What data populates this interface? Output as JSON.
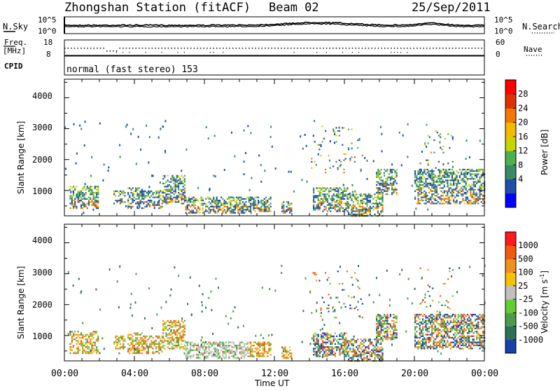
{
  "header": {
    "title": "Zhongshan Station (fitACF)",
    "beam": "Beam 02",
    "date": "25/Sep/2011"
  },
  "noise_panel": {
    "left_label": "N.Sky",
    "left_ticks": [
      "10^5",
      "10^0"
    ],
    "right_ticks": [
      "10^5",
      "10^0"
    ],
    "right_label": "N.Search"
  },
  "freq_panel": {
    "left_label_1": "Freq.",
    "left_label_2": "[MHz]",
    "left_ticks": [
      "18",
      "8"
    ],
    "right_ticks": [
      "60",
      "0"
    ],
    "right_label": "Nave"
  },
  "cpid_panel": {
    "label": "CPID",
    "text": "normal (fast stereo) 153"
  },
  "x_axis": {
    "tick_labels": [
      "00:00",
      "04:00",
      "08:00",
      "12:00",
      "16:00",
      "20:00",
      "00:00"
    ],
    "label": "Time UT"
  },
  "power_panel": {
    "ylabel": "Slant Range [km]",
    "y_ticks": [
      "4000",
      "3000",
      "2000",
      "1000"
    ],
    "colorbar_label": "Power [dB]",
    "colorbar_ticks": [
      "28",
      "24",
      "20",
      "16",
      "12",
      "8",
      "4"
    ],
    "colors": [
      "#0000ff",
      "#1f4fa8",
      "#3a8a6a",
      "#4fb04f",
      "#c8d400",
      "#f5b800",
      "#f07a00",
      "#e03000",
      "#ff0000"
    ]
  },
  "velocity_panel": {
    "ylabel": "Slant Range [km]",
    "y_ticks": [
      "4000",
      "3000",
      "2000",
      "1000"
    ],
    "colorbar_label": "Velocity [m s",
    "colorbar_label_sup": "-1",
    "colorbar_label_end": "]",
    "colorbar_ticks": [
      "1000",
      "500",
      "100",
      "25",
      "-25",
      "-100",
      "-500",
      "-1000"
    ],
    "colors": [
      "#1a3fa8",
      "#2f6f5a",
      "#4f9a4f",
      "#66cc33",
      "#c0c0c0",
      "#f5c000",
      "#f09020",
      "#f05a10",
      "#ff1a1a"
    ]
  },
  "chart_data": {
    "type": "heatmap",
    "x_range_hours": [
      0,
      24
    ],
    "y_range_km": [
      180,
      4600
    ],
    "grid": false,
    "scatter_regions": [
      {
        "t0": 0.3,
        "t1": 1.9,
        "r0": 420,
        "r1": 1150
      },
      {
        "t0": 2.8,
        "t1": 3.5,
        "r0": 600,
        "r1": 1000
      },
      {
        "t0": 3.6,
        "t1": 4.4,
        "r0": 450,
        "r1": 1100
      },
      {
        "t0": 4.4,
        "t1": 5.6,
        "r0": 450,
        "r1": 1000
      },
      {
        "t0": 5.6,
        "t1": 6.9,
        "r0": 600,
        "r1": 1500
      },
      {
        "t0": 6.9,
        "t1": 10.6,
        "r0": 280,
        "r1": 800
      },
      {
        "t0": 10.6,
        "t1": 11.8,
        "r0": 350,
        "r1": 800
      },
      {
        "t0": 12.4,
        "t1": 13.0,
        "r0": 300,
        "r1": 650
      },
      {
        "t0": 14.2,
        "t1": 16.2,
        "r0": 350,
        "r1": 1100
      },
      {
        "t0": 16.2,
        "t1": 18.2,
        "r0": 180,
        "r1": 900
      },
      {
        "t0": 17.8,
        "t1": 19.0,
        "r0": 900,
        "r1": 1700
      },
      {
        "t0": 20.0,
        "t1": 24.0,
        "r0": 600,
        "r1": 1700
      },
      {
        "t0": 14.0,
        "t1": 17.0,
        "r0": 1600,
        "r1": 3100
      },
      {
        "t0": 20.3,
        "t1": 22.2,
        "r0": 1700,
        "r1": 3200
      }
    ]
  }
}
